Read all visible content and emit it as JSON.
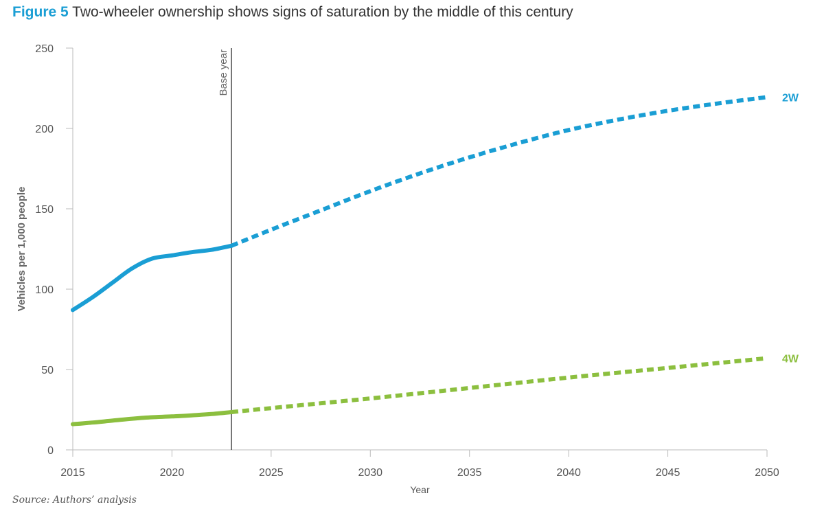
{
  "figure": {
    "number": "Figure 5",
    "title": "Two-wheeler ownership shows signs of saturation by the middle of this century",
    "source": "Source: Authors’ analysis"
  },
  "chart_data": {
    "type": "line",
    "xlabel": "Year",
    "ylabel": "Vehicles per 1,000 people",
    "xlim": [
      2015,
      2050
    ],
    "ylim": [
      0,
      250
    ],
    "x_ticks": [
      2015,
      2020,
      2025,
      2030,
      2035,
      2040,
      2045,
      2050
    ],
    "y_ticks": [
      0,
      50,
      100,
      150,
      200,
      250
    ],
    "grid": false,
    "annotations": [
      {
        "type": "vertical-line",
        "x": 2023,
        "label": "Base year"
      }
    ],
    "series": [
      {
        "name": "2W",
        "color": "#1a9ed4",
        "historical": {
          "x": [
            2015,
            2016,
            2017,
            2018,
            2019,
            2020,
            2021,
            2022,
            2023
          ],
          "y": [
            87,
            95,
            104,
            113,
            119,
            121,
            123,
            124.5,
            127
          ]
        },
        "projected": {
          "x": [
            2023,
            2025,
            2027.5,
            2030,
            2032.5,
            2035,
            2037.5,
            2040,
            2042.5,
            2045,
            2047.5,
            2050
          ],
          "y": [
            127,
            137,
            149,
            161,
            172,
            182,
            191,
            199,
            205.5,
            211,
            215.5,
            219.5
          ]
        }
      },
      {
        "name": "4W",
        "color": "#8cbf3f",
        "historical": {
          "x": [
            2015,
            2016,
            2017,
            2018,
            2019,
            2020,
            2021,
            2022,
            2023
          ],
          "y": [
            16,
            17,
            18.2,
            19.4,
            20.3,
            20.8,
            21.5,
            22.3,
            23.5
          ]
        },
        "projected": {
          "x": [
            2023,
            2025,
            2030,
            2035,
            2040,
            2045,
            2050
          ],
          "y": [
            23.5,
            26,
            32,
            38.5,
            45,
            51,
            57
          ]
        }
      }
    ]
  }
}
